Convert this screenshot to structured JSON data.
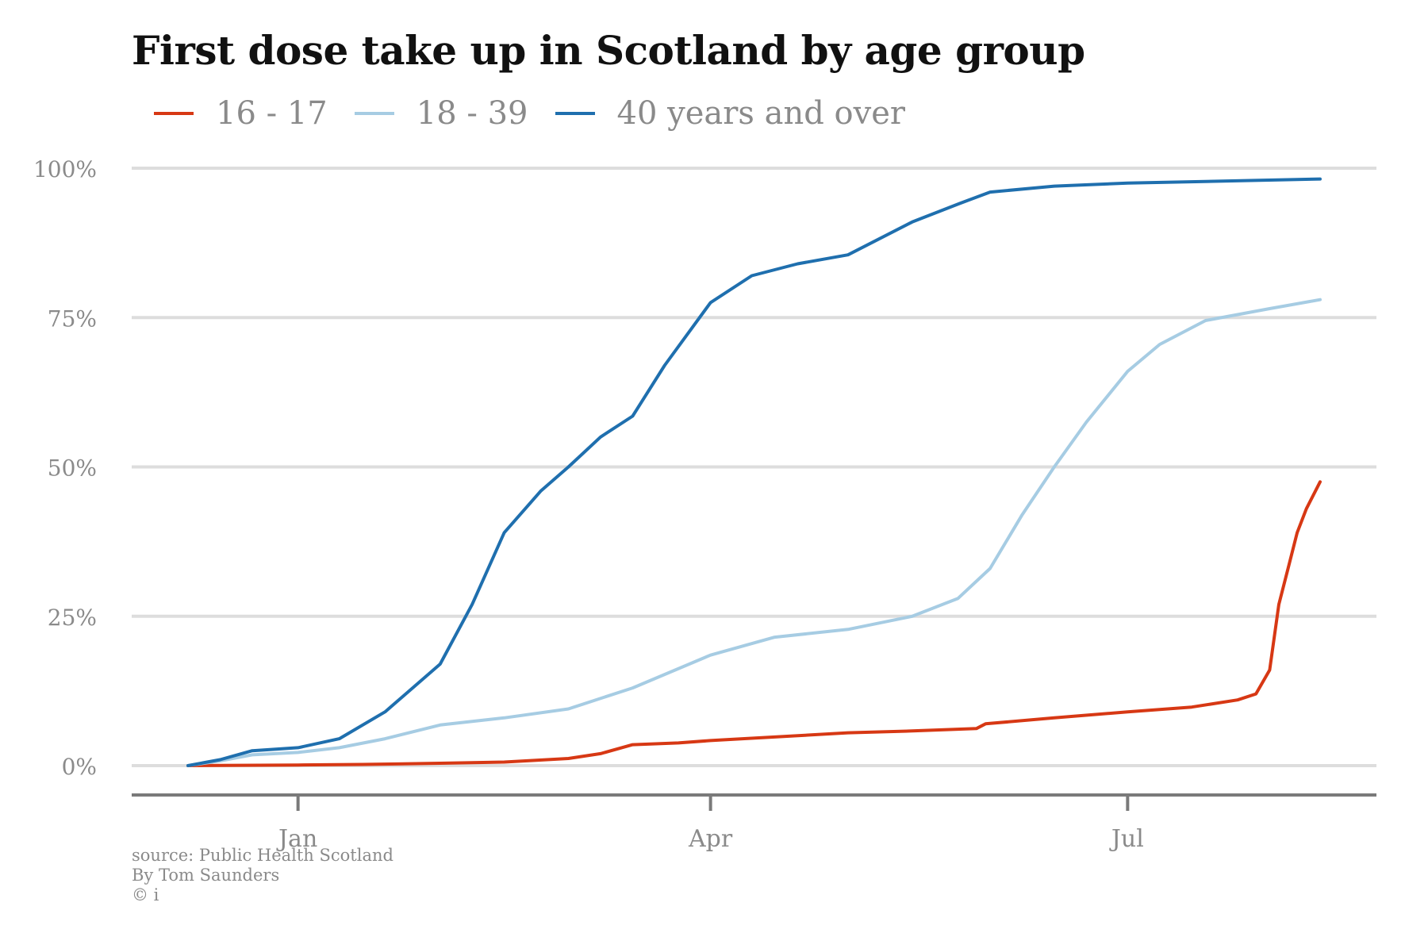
{
  "title": "First dose take up in Scotland by age group",
  "legend": [
    {
      "label": "16 - 17",
      "color": "#d73814"
    },
    {
      "label": "18 - 39",
      "color": "#a6cce3"
    },
    {
      "label": "40 years and over",
      "color": "#1f6fae"
    }
  ],
  "footer": {
    "source": "source: Public Health Scotland",
    "author": "By Tom Saunders",
    "copyright": "© i"
  },
  "chart_data": {
    "type": "line",
    "title": "First dose take up in Scotland by age group",
    "xlabel": "",
    "ylabel": "",
    "x_domain": [
      "2020-12-08",
      "2021-08-12"
    ],
    "x_ticks": [
      {
        "date": "2021-01-01",
        "label": "Jan"
      },
      {
        "date": "2021-04-01",
        "label": "Apr"
      },
      {
        "date": "2021-07-01",
        "label": "Jul"
      }
    ],
    "ylim": [
      0,
      100
    ],
    "y_ticks": [
      {
        "value": 0,
        "label": "0%"
      },
      {
        "value": 25,
        "label": "25%"
      },
      {
        "value": 50,
        "label": "50%"
      },
      {
        "value": 75,
        "label": "75%"
      },
      {
        "value": 100,
        "label": "100%"
      }
    ],
    "grid": true,
    "legend_position": "top-left",
    "series": [
      {
        "name": "16 - 17",
        "color": "#d73814",
        "points": [
          [
            "2020-12-08",
            0
          ],
          [
            "2021-01-01",
            0.1
          ],
          [
            "2021-01-15",
            0.2
          ],
          [
            "2021-02-01",
            0.4
          ],
          [
            "2021-02-15",
            0.6
          ],
          [
            "2021-03-01",
            1.2
          ],
          [
            "2021-03-08",
            2.0
          ],
          [
            "2021-03-15",
            3.5
          ],
          [
            "2021-03-25",
            3.8
          ],
          [
            "2021-04-01",
            4.2
          ],
          [
            "2021-04-15",
            4.8
          ],
          [
            "2021-05-01",
            5.5
          ],
          [
            "2021-05-15",
            5.8
          ],
          [
            "2021-05-29",
            6.2
          ],
          [
            "2021-05-31",
            7.0
          ],
          [
            "2021-06-15",
            8.0
          ],
          [
            "2021-07-01",
            9.0
          ],
          [
            "2021-07-15",
            9.8
          ],
          [
            "2021-07-25",
            11.0
          ],
          [
            "2021-07-29",
            12.0
          ],
          [
            "2021-08-01",
            16.0
          ],
          [
            "2021-08-03",
            27.0
          ],
          [
            "2021-08-05",
            33.0
          ],
          [
            "2021-08-07",
            39.0
          ],
          [
            "2021-08-09",
            43.0
          ],
          [
            "2021-08-12",
            47.5
          ]
        ]
      },
      {
        "name": "18 - 39",
        "color": "#a6cce3",
        "points": [
          [
            "2020-12-08",
            0
          ],
          [
            "2020-12-15",
            0.8
          ],
          [
            "2020-12-22",
            1.8
          ],
          [
            "2021-01-01",
            2.2
          ],
          [
            "2021-01-10",
            3.0
          ],
          [
            "2021-01-20",
            4.5
          ],
          [
            "2021-02-01",
            6.8
          ],
          [
            "2021-02-15",
            8.0
          ],
          [
            "2021-03-01",
            9.5
          ],
          [
            "2021-03-15",
            13.0
          ],
          [
            "2021-04-01",
            18.5
          ],
          [
            "2021-04-15",
            21.5
          ],
          [
            "2021-05-01",
            22.8
          ],
          [
            "2021-05-15",
            25.0
          ],
          [
            "2021-05-25",
            28.0
          ],
          [
            "2021-06-01",
            33.0
          ],
          [
            "2021-06-08",
            42.0
          ],
          [
            "2021-06-15",
            50.0
          ],
          [
            "2021-06-22",
            57.5
          ],
          [
            "2021-07-01",
            66.0
          ],
          [
            "2021-07-08",
            70.5
          ],
          [
            "2021-07-18",
            74.5
          ],
          [
            "2021-08-01",
            76.5
          ],
          [
            "2021-08-12",
            78.0
          ]
        ]
      },
      {
        "name": "40 years and over",
        "color": "#1f6fae",
        "points": [
          [
            "2020-12-08",
            0
          ],
          [
            "2020-12-15",
            1.0
          ],
          [
            "2020-12-22",
            2.5
          ],
          [
            "2021-01-01",
            3.0
          ],
          [
            "2021-01-10",
            4.5
          ],
          [
            "2021-01-20",
            9.0
          ],
          [
            "2021-02-01",
            17.0
          ],
          [
            "2021-02-08",
            27.0
          ],
          [
            "2021-02-15",
            39.0
          ],
          [
            "2021-02-23",
            46.0
          ],
          [
            "2021-03-01",
            50.0
          ],
          [
            "2021-03-08",
            55.0
          ],
          [
            "2021-03-15",
            58.5
          ],
          [
            "2021-03-22",
            67.0
          ],
          [
            "2021-04-01",
            77.5
          ],
          [
            "2021-04-10",
            82.0
          ],
          [
            "2021-04-20",
            84.0
          ],
          [
            "2021-05-01",
            85.5
          ],
          [
            "2021-05-15",
            91.0
          ],
          [
            "2021-05-25",
            94.0
          ],
          [
            "2021-06-01",
            96.0
          ],
          [
            "2021-06-15",
            97.0
          ],
          [
            "2021-07-01",
            97.5
          ],
          [
            "2021-08-12",
            98.2
          ]
        ]
      }
    ]
  }
}
